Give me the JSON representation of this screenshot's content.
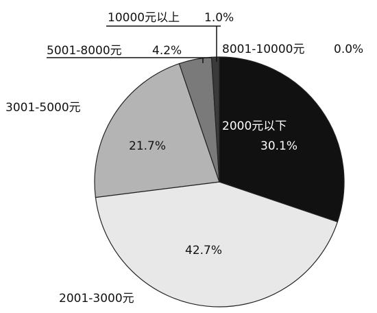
{
  "chart_data": {
    "type": "pie",
    "title": "",
    "slices": [
      {
        "label": "2000元以下",
        "value": 30.1,
        "value_label": "30.1%",
        "color": "#111111"
      },
      {
        "label": "2001-3000元",
        "value": 42.7,
        "value_label": "42.7%",
        "color": "#e8e8e8"
      },
      {
        "label": "3001-5000元",
        "value": 21.7,
        "value_label": "21.7%",
        "color": "#b4b4b4"
      },
      {
        "label": "5001-8000元",
        "value": 4.2,
        "value_label": "4.2%",
        "color": "#7a7a7a"
      },
      {
        "label": "10000元以上",
        "value": 1.0,
        "value_label": "1.0%",
        "color": "#3a3a3a"
      },
      {
        "label": "8001-10000元",
        "value": 0.0,
        "value_label": "0.0%",
        "color": "#222222"
      }
    ],
    "start_angle": "12 o'clock",
    "direction": "clockwise",
    "legend": "none",
    "labels": "outside and inside slices"
  }
}
